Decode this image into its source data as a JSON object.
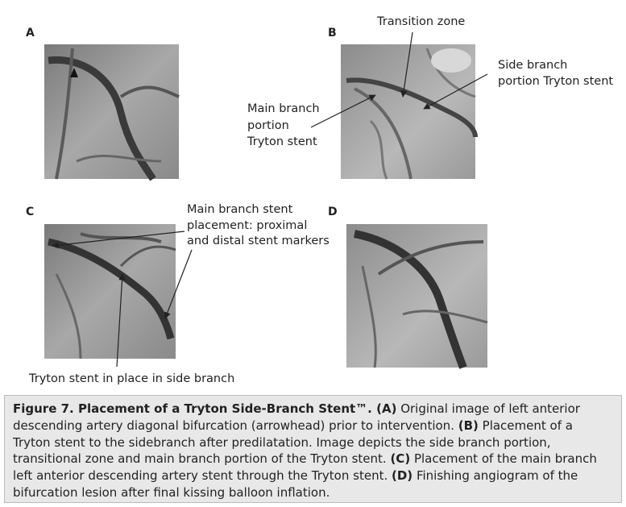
{
  "panels": [
    {
      "label": "A"
    },
    {
      "label": "B"
    },
    {
      "label": "C"
    },
    {
      "label": "D"
    }
  ],
  "annotations": {
    "transition_zone": [
      "Transition zone"
    ],
    "side_branch": [
      "Side branch",
      "portion Tryton stent"
    ],
    "main_branch": [
      "Main branch",
      "portion",
      "Tryton stent"
    ],
    "main_branch_stent": [
      "Main branch stent",
      "placement: proximal",
      "and distal stent markers"
    ],
    "tryton_side": [
      "Tryton stent in place in side branch"
    ]
  },
  "caption": [
    {
      "text": "Figure 7. Placement of a Tryton Side-Branch Stent™. (A)",
      "bold": true
    },
    {
      "text": " Original image of left anterior descending artery diagonal bifurcation (arrowhead) prior to intervention. ",
      "bold": false
    },
    {
      "text": "(B)",
      "bold": true
    },
    {
      "text": " Placement of a Tryton stent to the sidebranch after predilatation. Image depicts the side branch portion, transitional zone and main branch portion of the Tryton stent. ",
      "bold": false
    },
    {
      "text": "(C)",
      "bold": true
    },
    {
      "text": " Placement of the main branch left anterior descending artery stent through the Tryton stent. ",
      "bold": false
    },
    {
      "text": "(D)",
      "bold": true
    },
    {
      "text": " Finishing angiogram of the bifurcation lesion after final kissing balloon inflation.",
      "bold": false
    }
  ]
}
